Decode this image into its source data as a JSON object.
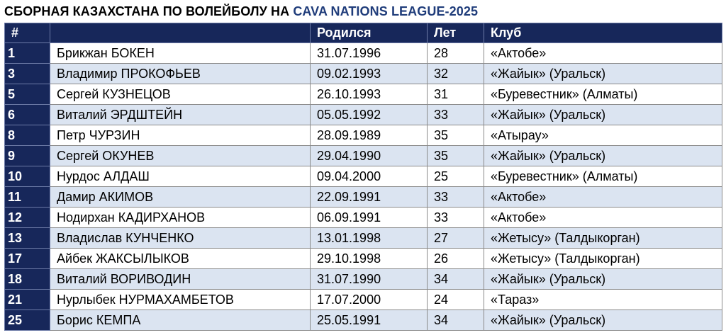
{
  "title": {
    "main": "СБОРНАЯ КАЗАХСТАНА ПО ВОЛЕЙБОЛУ НА ",
    "accent": "CAVA NATIONS LEAGUE-2025"
  },
  "colors": {
    "header_bg": "#17275a",
    "row_alt": "#dbe4f1",
    "title_accent": "#1f3c7a"
  },
  "headers": {
    "num": "#",
    "name": "",
    "born": "Родился",
    "age": "Лет",
    "club": "Клуб"
  },
  "rows": [
    {
      "num": "1",
      "name": "Брикжан БОКЕН",
      "born": "31.07.1996",
      "age": "28",
      "club": "«Актобе»"
    },
    {
      "num": "3",
      "name": "Владимир ПРОКОФЬЕВ",
      "born": "09.02.1993",
      "age": "32",
      "club": "«Жайык» (Уральск)"
    },
    {
      "num": "5",
      "name": "Сергей КУЗНЕЦОВ",
      "born": "26.10.1993",
      "age": "31",
      "club": "«Буревестник» (Алматы)"
    },
    {
      "num": "6",
      "name": "Виталий ЭРДШТЕЙН",
      "born": "05.05.1992",
      "age": "33",
      "club": "«Жайык» (Уральск)"
    },
    {
      "num": "8",
      "name": "Петр ЧУРЗИН",
      "born": "28.09.1989",
      "age": "35",
      "club": "«Атырау»"
    },
    {
      "num": "9",
      "name": "Сергей ОКУНЕВ",
      "born": "29.04.1990",
      "age": "35",
      "club": "«Жайык» (Уральск)"
    },
    {
      "num": "10",
      "name": "Нурдос АЛДАШ",
      "born": "09.04.2000",
      "age": "25",
      "club": "«Буревестник» (Алматы)"
    },
    {
      "num": "11",
      "name": "Дамир АКИМОВ",
      "born": "22.09.1991",
      "age": "33",
      "club": "«Актобе»"
    },
    {
      "num": "12",
      "name": "Нодирхан КАДИРХАНОВ",
      "born": "06.09.1991",
      "age": "33",
      "club": "«Актобе»"
    },
    {
      "num": "13",
      "name": "Владислав КУНЧЕНКО",
      "born": "13.01.1998",
      "age": "27",
      "club": "«Жетысу» (Талдыкорган)"
    },
    {
      "num": "17",
      "name": "Айбек ЖАКСЫЛЫКОВ",
      "born": "29.10.1998",
      "age": "26",
      "club": "«Жетысу» (Талдыкорган)"
    },
    {
      "num": "18",
      "name": "Виталий ВОРИВОДИН",
      "born": "31.07.1990",
      "age": "34",
      "club": "«Жайык» (Уральск)"
    },
    {
      "num": "21",
      "name": "Нурлыбек НУРМАХАМБЕТОВ",
      "born": "17.07.2000",
      "age": "24",
      "club": "«Тараз»"
    },
    {
      "num": "25",
      "name": "Борис КЕМПА",
      "born": "25.05.1991",
      "age": "34",
      "club": "«Жайык» (Уральск)"
    }
  ]
}
